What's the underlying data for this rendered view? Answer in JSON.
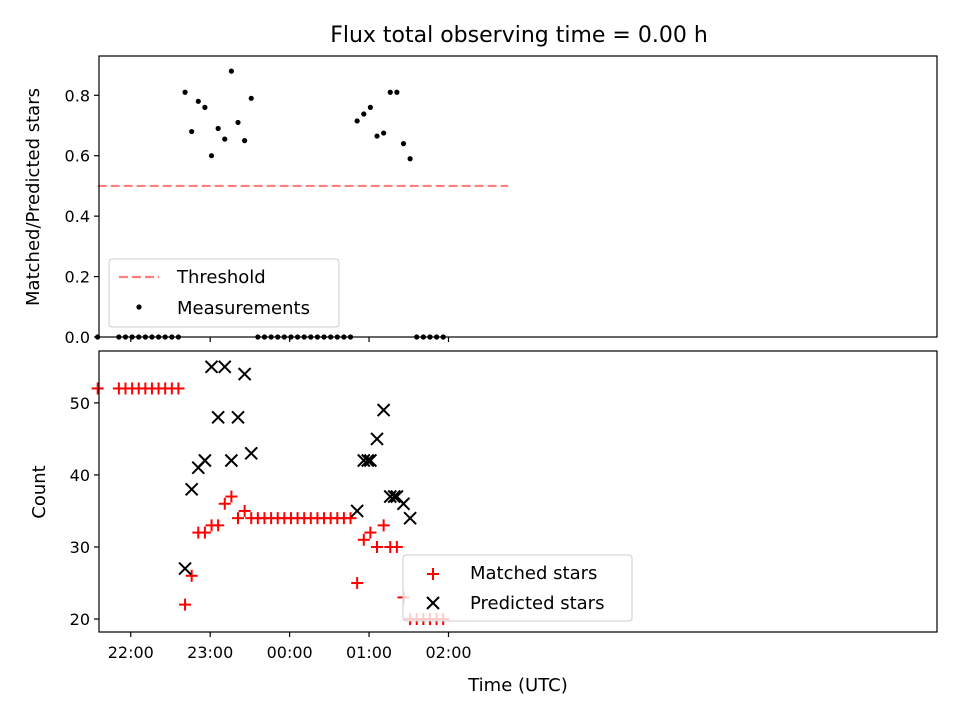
{
  "figure": {
    "title": "Flux total observing time = 0.00 h"
  },
  "colors": {
    "threshold": "#ff7f7f",
    "measurement": "#000000",
    "matched": "#ff0000",
    "predicted": "#000000",
    "axes": "#000000",
    "legend_border": "#cccccc"
  },
  "chart_data": [
    {
      "type": "scatter",
      "panel": "top",
      "ylabel": "Matched/Predicted stars",
      "xlabel": "",
      "ylim": [
        0.0,
        0.93
      ],
      "yticks": [
        0.0,
        0.2,
        0.4,
        0.6,
        0.8
      ],
      "ytick_labels": [
        "0.0",
        "0.2",
        "0.4",
        "0.6",
        "0.8"
      ],
      "xlim_minutes": [
        1296,
        1929
      ],
      "xticks_minutes": [
        1320,
        1380,
        1440,
        1500,
        1560
      ],
      "grid": false,
      "legend_placement": "lower-left",
      "threshold": {
        "name": "Threshold",
        "value": 0.5,
        "x_range_minutes": [
          1295,
          1605
        ]
      },
      "series": [
        {
          "name": "Measurements",
          "marker": "dot",
          "points": [
            [
              1295,
              0.0
            ],
            [
              1311,
              0.0
            ],
            [
              1316,
              0.0
            ],
            [
              1321,
              0.0
            ],
            [
              1326,
              0.0
            ],
            [
              1331,
              0.0
            ],
            [
              1336,
              0.0
            ],
            [
              1341,
              0.0
            ],
            [
              1346,
              0.0
            ],
            [
              1351,
              0.0
            ],
            [
              1356,
              0.0
            ],
            [
              1361,
              0.81
            ],
            [
              1366,
              0.68
            ],
            [
              1371,
              0.78
            ],
            [
              1376,
              0.76
            ],
            [
              1381,
              0.6
            ],
            [
              1386,
              0.69
            ],
            [
              1391,
              0.655
            ],
            [
              1396,
              0.88
            ],
            [
              1401,
              0.71
            ],
            [
              1406,
              0.65
            ],
            [
              1411,
              0.79
            ],
            [
              1416,
              0.0
            ],
            [
              1421,
              0.0
            ],
            [
              1426,
              0.0
            ],
            [
              1431,
              0.0
            ],
            [
              1436,
              0.0
            ],
            [
              1441,
              0.0
            ],
            [
              1446,
              0.0
            ],
            [
              1451,
              0.0
            ],
            [
              1456,
              0.0
            ],
            [
              1461,
              0.0
            ],
            [
              1466,
              0.0
            ],
            [
              1471,
              0.0
            ],
            [
              1476,
              0.0
            ],
            [
              1481,
              0.0
            ],
            [
              1486,
              0.0
            ],
            [
              1491,
              0.715
            ],
            [
              1496,
              0.738
            ],
            [
              1501,
              0.76
            ],
            [
              1506,
              0.665
            ],
            [
              1511,
              0.675
            ],
            [
              1516,
              0.81
            ],
            [
              1521,
              0.81
            ],
            [
              1526,
              0.64
            ],
            [
              1531,
              0.59
            ],
            [
              1536,
              0.0
            ],
            [
              1541,
              0.0
            ],
            [
              1546,
              0.0
            ],
            [
              1551,
              0.0
            ],
            [
              1556,
              0.0
            ]
          ]
        }
      ]
    },
    {
      "type": "scatter",
      "panel": "bottom",
      "ylabel": "Count",
      "xlabel": "Time (UTC)",
      "ylim": [
        18.2,
        57.2
      ],
      "yticks": [
        20,
        30,
        40,
        50
      ],
      "ytick_labels": [
        "20",
        "30",
        "40",
        "50"
      ],
      "xlim_minutes": [
        1296,
        1929
      ],
      "xticks_minutes": [
        1320,
        1380,
        1440,
        1500,
        1560
      ],
      "xtick_labels": [
        "22:00",
        "23:00",
        "00:00",
        "01:00",
        "02:00"
      ],
      "grid": false,
      "legend_placement": "lower-center",
      "series": [
        {
          "name": "Matched stars",
          "marker": "plus",
          "points": [
            [
              1295,
              52
            ],
            [
              1311,
              52
            ],
            [
              1316,
              52
            ],
            [
              1321,
              52
            ],
            [
              1326,
              52
            ],
            [
              1331,
              52
            ],
            [
              1336,
              52
            ],
            [
              1341,
              52
            ],
            [
              1346,
              52
            ],
            [
              1351,
              52
            ],
            [
              1356,
              52
            ],
            [
              1361,
              22
            ],
            [
              1366,
              26
            ],
            [
              1371,
              32
            ],
            [
              1376,
              32
            ],
            [
              1381,
              33
            ],
            [
              1386,
              33
            ],
            [
              1391,
              36
            ],
            [
              1396,
              37
            ],
            [
              1401,
              34
            ],
            [
              1406,
              35
            ],
            [
              1411,
              34
            ],
            [
              1416,
              34
            ],
            [
              1421,
              34
            ],
            [
              1426,
              34
            ],
            [
              1431,
              34
            ],
            [
              1436,
              34
            ],
            [
              1441,
              34
            ],
            [
              1446,
              34
            ],
            [
              1451,
              34
            ],
            [
              1456,
              34
            ],
            [
              1461,
              34
            ],
            [
              1466,
              34
            ],
            [
              1471,
              34
            ],
            [
              1476,
              34
            ],
            [
              1481,
              34
            ],
            [
              1486,
              34
            ],
            [
              1491,
              25
            ],
            [
              1496,
              31
            ],
            [
              1501,
              32
            ],
            [
              1506,
              30
            ],
            [
              1511,
              33
            ],
            [
              1516,
              30
            ],
            [
              1521,
              30
            ],
            [
              1526,
              23
            ],
            [
              1531,
              20
            ],
            [
              1536,
              20
            ],
            [
              1541,
              20
            ],
            [
              1546,
              20
            ],
            [
              1551,
              20
            ],
            [
              1556,
              20
            ]
          ]
        },
        {
          "name": "Predicted stars",
          "marker": "x",
          "points": [
            [
              1361,
              27
            ],
            [
              1366,
              38
            ],
            [
              1371,
              41
            ],
            [
              1376,
              42
            ],
            [
              1381,
              55
            ],
            [
              1386,
              48
            ],
            [
              1391,
              55
            ],
            [
              1396,
              42
            ],
            [
              1401,
              48
            ],
            [
              1406,
              54
            ],
            [
              1411,
              43
            ],
            [
              1491,
              35
            ],
            [
              1496,
              42
            ],
            [
              1499,
              42
            ],
            [
              1501,
              42
            ],
            [
              1506,
              45
            ],
            [
              1511,
              49
            ],
            [
              1516,
              37
            ],
            [
              1519,
              37
            ],
            [
              1521,
              37
            ],
            [
              1526,
              36
            ],
            [
              1531,
              34
            ]
          ]
        }
      ]
    }
  ]
}
